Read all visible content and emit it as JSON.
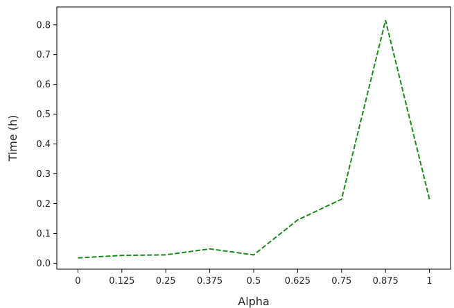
{
  "chart_data": {
    "type": "line",
    "title": "",
    "xlabel": "Alpha",
    "ylabel": "Time (h)",
    "x": [
      0,
      0.125,
      0.25,
      0.375,
      0.5,
      0.625,
      0.75,
      0.875,
      1
    ],
    "xtick_labels": [
      "0",
      "0.125",
      "0.25",
      "0.375",
      "0.5",
      "0.625",
      "0.75",
      "0.875",
      "1"
    ],
    "xlim": [
      -0.06,
      1.06
    ],
    "ylim": [
      -0.02,
      0.86
    ],
    "yticks": [
      0.0,
      0.1,
      0.2,
      0.3,
      0.4,
      0.5,
      0.6,
      0.7,
      0.8
    ],
    "ytick_labels": [
      "0.0",
      "0.1",
      "0.2",
      "0.3",
      "0.4",
      "0.5",
      "0.6",
      "0.7",
      "0.8"
    ],
    "series": [
      {
        "values": [
          0.018,
          0.026,
          0.028,
          0.048,
          0.028,
          0.145,
          0.215,
          0.815,
          0.215
        ],
        "color": "#1a8a1a",
        "line_style": "dashed"
      }
    ],
    "grid": false,
    "legend": "none"
  }
}
